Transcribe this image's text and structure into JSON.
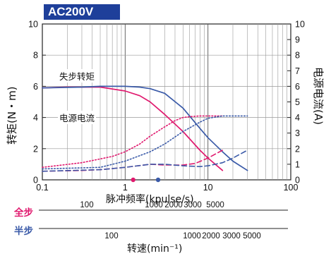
{
  "badge": "AC200V",
  "ylabel_left": "转矩(N・m)",
  "ylabel_right": "电源电流(A)",
  "xlabel": "脉冲频率(kpulse/s)",
  "rpm_label": "转速(min⁻¹)",
  "curve_labels": {
    "torque": "失步转矩",
    "current": "电源电流"
  },
  "colors": {
    "full_step": "#e0196e",
    "half_step": "#3a5aa8",
    "badge_bg": "#1e3f9a"
  },
  "step_rows": [
    {
      "label": "全步",
      "color": "#e0196e",
      "ticks": [
        "100",
        "1000",
        "2000",
        "3000",
        "5000"
      ]
    },
    {
      "label": "半步",
      "color": "#3a5aa8",
      "ticks": [
        "100",
        "1000",
        "2000",
        "3000",
        "5000"
      ]
    }
  ],
  "chart_data": {
    "type": "line",
    "x_scale": "log",
    "xlim": [
      0.1,
      100
    ],
    "ylim_left": [
      0,
      10
    ],
    "ylim_right": [
      0,
      10
    ],
    "x_ticks": [
      "0.1",
      "1",
      "10",
      "100"
    ],
    "y_ticks_left": [
      "0",
      "2",
      "4",
      "6",
      "8",
      "10"
    ],
    "y_ticks_right": [
      "0",
      "1",
      "2",
      "3",
      "4",
      "5",
      "6",
      "7",
      "8",
      "9",
      "10"
    ],
    "grid": true,
    "markers": [
      {
        "x": 1.25,
        "color": "#e0196e"
      },
      {
        "x": 2.5,
        "color": "#3a5aa8"
      }
    ],
    "series": [
      {
        "color": "#e0196e",
        "style": "solid",
        "axis": "left",
        "x": [
          0.1,
          0.2,
          0.5,
          1,
          1.5,
          2,
          3,
          5,
          8,
          10,
          15
        ],
        "y": [
          5.9,
          5.95,
          5.95,
          5.7,
          5.4,
          5.0,
          4.2,
          3.1,
          1.9,
          1.4,
          0.6
        ]
      },
      {
        "color": "#3a5aa8",
        "style": "solid",
        "axis": "left",
        "x": [
          0.1,
          0.3,
          0.5,
          1,
          1.5,
          2,
          3,
          5,
          8,
          10,
          15,
          20,
          30
        ],
        "y": [
          5.9,
          5.95,
          6.0,
          6.0,
          5.95,
          5.85,
          5.55,
          4.6,
          3.3,
          2.7,
          1.8,
          1.2,
          0.6
        ]
      },
      {
        "color": "#e0196e",
        "style": "dotted",
        "axis": "right",
        "x": [
          0.1,
          0.3,
          0.7,
          1,
          1.5,
          2,
          3,
          4,
          5,
          6,
          8,
          10,
          15
        ],
        "y": [
          0.8,
          1.1,
          1.5,
          1.8,
          2.3,
          2.8,
          3.4,
          3.8,
          4.0,
          4.05,
          4.1,
          4.1,
          4.1
        ]
      },
      {
        "color": "#3a5aa8",
        "style": "dotted",
        "axis": "right",
        "x": [
          0.1,
          0.5,
          1,
          2,
          3,
          5,
          8,
          10,
          15,
          20,
          30
        ],
        "y": [
          0.7,
          0.8,
          1.2,
          1.8,
          2.3,
          3.1,
          3.7,
          3.95,
          4.1,
          4.1,
          4.1
        ]
      },
      {
        "color": "#e0196e",
        "style": "dashed",
        "axis": "right",
        "x": [
          0.1,
          0.3,
          0.5,
          1,
          2,
          3,
          5,
          7,
          10,
          15
        ],
        "y": [
          0.55,
          0.6,
          0.65,
          0.8,
          1.0,
          0.95,
          0.95,
          1.05,
          1.4,
          1.9
        ]
      },
      {
        "color": "#3a5aa8",
        "style": "dashed",
        "axis": "right",
        "x": [
          0.1,
          0.5,
          1,
          2,
          3,
          5,
          8,
          10,
          15,
          20,
          30
        ],
        "y": [
          0.55,
          0.65,
          0.8,
          1.0,
          1.0,
          0.9,
          0.85,
          0.9,
          1.1,
          1.4,
          1.9
        ]
      }
    ]
  }
}
